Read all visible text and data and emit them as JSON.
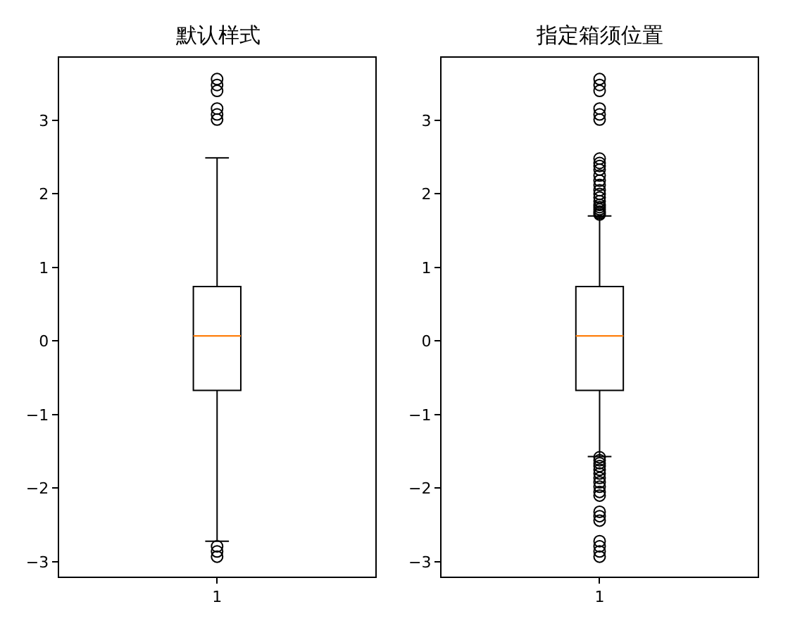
{
  "chart_data": [
    {
      "type": "box",
      "title": "默认样式",
      "categories": [
        "1"
      ],
      "series": [
        {
          "color": "#000000",
          "boxes": [
            {
              "low": -2.72,
              "q1": -0.67,
              "median": 0.07,
              "q3": 0.74,
              "high": 2.49,
              "outliers": [
                3.56,
                3.48,
                3.4,
                3.16,
                3.08,
                3.01,
                -2.79,
                -2.86,
                -2.93
              ]
            }
          ]
        }
      ],
      "ylim": [
        -3.2,
        3.85
      ],
      "yticks": [
        -3,
        -2,
        -1,
        0,
        1,
        2,
        3
      ],
      "marker": "circle"
    },
    {
      "type": "box",
      "title": "指定箱须位置",
      "categories": [
        "1"
      ],
      "series": [
        {
          "color": "#000000",
          "boxes": [
            {
              "low": -1.57,
              "q1": -0.67,
              "median": 0.07,
              "q3": 0.74,
              "high": 1.7,
              "outliers": [
                3.56,
                3.48,
                3.4,
                3.16,
                3.08,
                3.01,
                2.48,
                2.42,
                2.38,
                2.33,
                2.25,
                2.18,
                2.12,
                2.05,
                2.0,
                1.95,
                1.9,
                1.85,
                1.82,
                1.79,
                1.76,
                1.74,
                1.72,
                -1.58,
                -1.62,
                -1.66,
                -1.7,
                -1.75,
                -1.8,
                -1.86,
                -1.92,
                -1.98,
                -2.05,
                -2.1,
                -2.32,
                -2.38,
                -2.44,
                -2.72,
                -2.79,
                -2.86,
                -2.93
              ]
            }
          ]
        }
      ],
      "ylim": [
        -3.2,
        3.85
      ],
      "yticks": [
        -3,
        -2,
        -1,
        0,
        1,
        2,
        3
      ],
      "marker": "circle"
    }
  ]
}
